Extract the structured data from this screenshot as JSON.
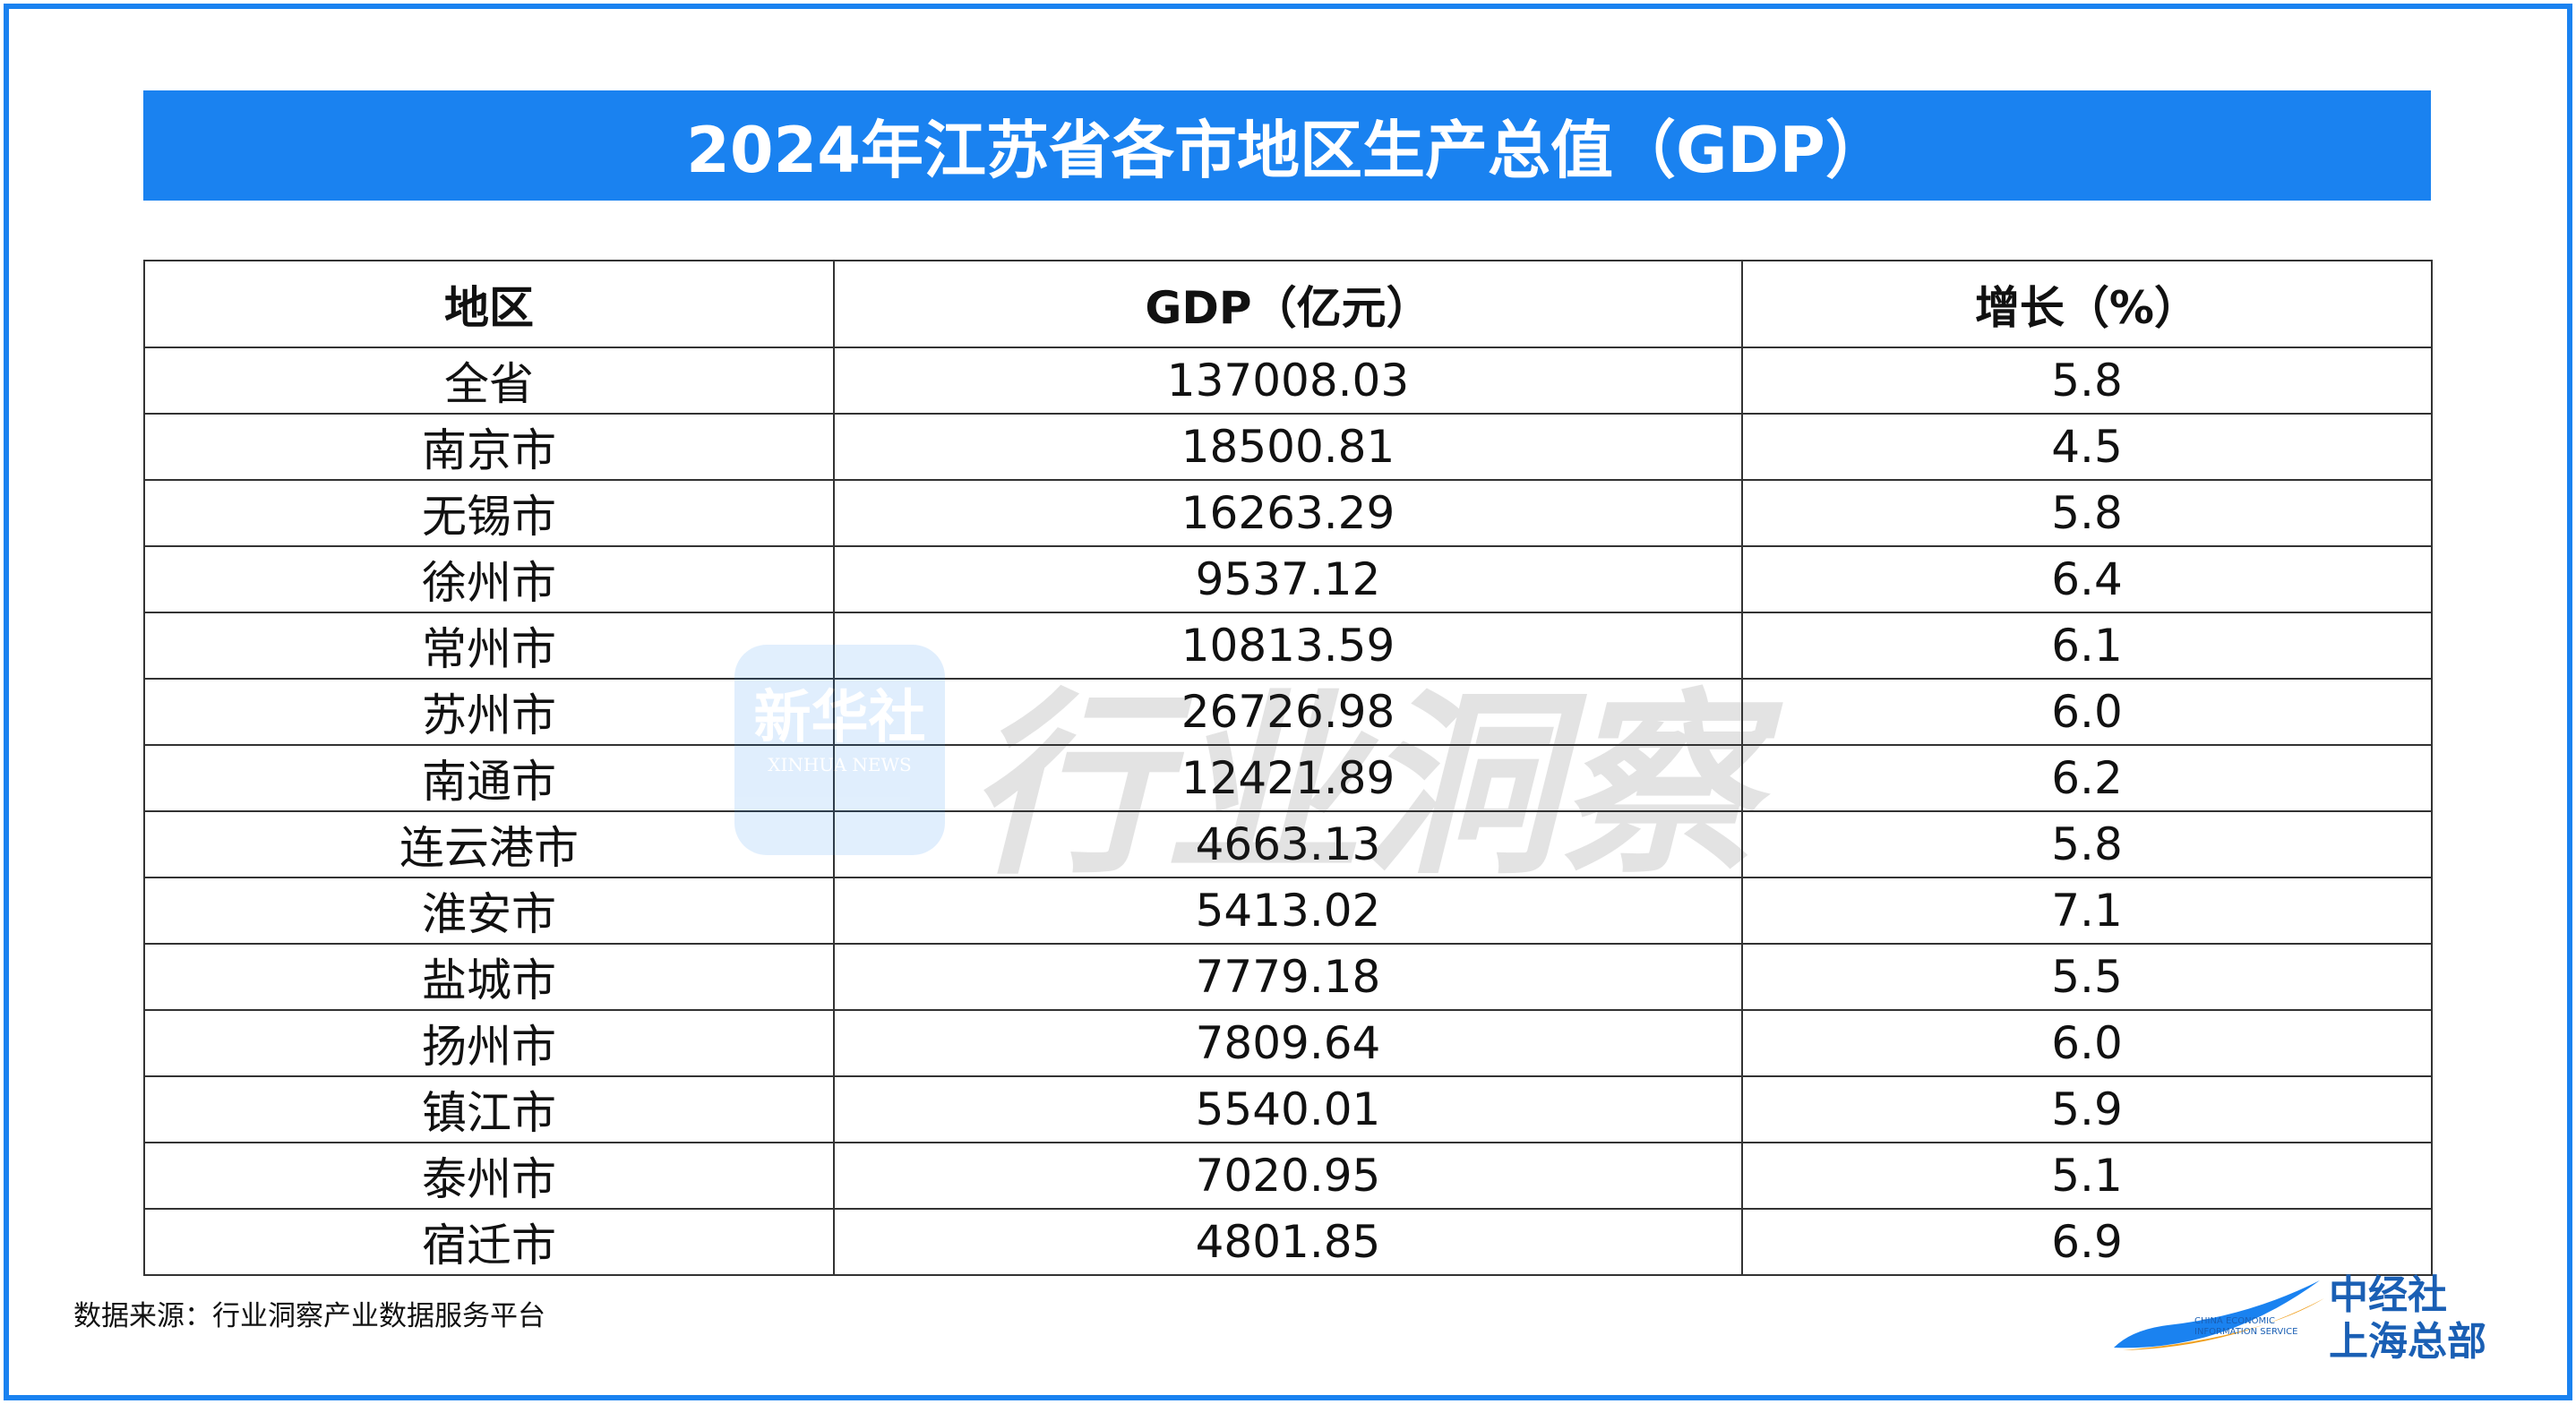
{
  "header": {
    "title": "2024年江苏省各市地区生产总值（GDP）"
  },
  "table": {
    "headers": [
      "地区",
      "GDP（亿元）",
      "增长（%）"
    ],
    "rows": [
      [
        "全省",
        "137008.03",
        "5.8"
      ],
      [
        "南京市",
        "18500.81",
        "4.5"
      ],
      [
        "无锡市",
        "16263.29",
        "5.8"
      ],
      [
        "徐州市",
        "9537.12",
        "6.4"
      ],
      [
        "常州市",
        "10813.59",
        "6.1"
      ],
      [
        "苏州市",
        "26726.98",
        "6.0"
      ],
      [
        "南通市",
        "12421.89",
        "6.2"
      ],
      [
        "连云港市",
        "4663.13",
        "5.8"
      ],
      [
        "淮安市",
        "5413.02",
        "7.1"
      ],
      [
        "盐城市",
        "7779.18",
        "5.5"
      ],
      [
        "扬州市",
        "7809.64",
        "6.0"
      ],
      [
        "镇江市",
        "5540.01",
        "5.9"
      ],
      [
        "泰州市",
        "7020.95",
        "5.1"
      ],
      [
        "宿迁市",
        "4801.85",
        "6.9"
      ]
    ]
  },
  "watermark": {
    "badge": "新华社",
    "badge_en": "XINHUA NEWS",
    "text": "行业洞察"
  },
  "footer": {
    "source": "数据来源：行业洞察产业数据服务平台",
    "logo": {
      "line1": "中经社",
      "line2": "上海总部",
      "english": "CHINA ECONOMIC INFORMATION SERVICE"
    }
  }
}
